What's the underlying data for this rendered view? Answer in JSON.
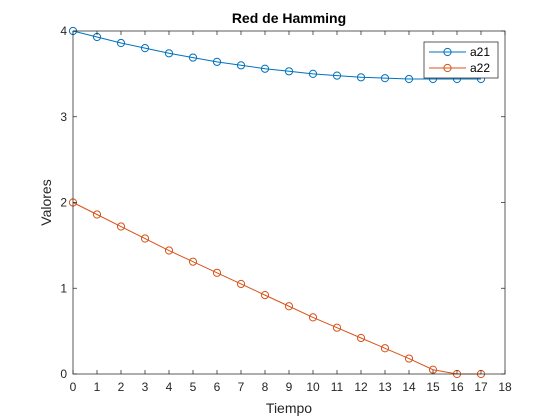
{
  "chart_data": {
    "type": "line",
    "title": "Red de Hamming",
    "xlabel": "Tiempo",
    "ylabel": "Valores",
    "xlim": [
      0,
      18
    ],
    "ylim": [
      0,
      4
    ],
    "xticks": [
      0,
      1,
      2,
      3,
      4,
      5,
      6,
      7,
      8,
      9,
      10,
      11,
      12,
      13,
      14,
      15,
      16,
      17,
      18
    ],
    "yticks": [
      0,
      1,
      2,
      3,
      4
    ],
    "grid": false,
    "legend_position": "top-right",
    "x": [
      0,
      1,
      2,
      3,
      4,
      5,
      6,
      7,
      8,
      9,
      10,
      11,
      12,
      13,
      14,
      15,
      16,
      17
    ],
    "series": [
      {
        "name": "a21",
        "color": "#0072BD",
        "marker": "circle",
        "values": [
          4.0,
          3.93,
          3.86,
          3.8,
          3.74,
          3.69,
          3.64,
          3.6,
          3.56,
          3.53,
          3.5,
          3.48,
          3.46,
          3.45,
          3.44,
          3.44,
          3.44,
          3.44
        ]
      },
      {
        "name": "a22",
        "color": "#D95319",
        "marker": "circle",
        "values": [
          2.0,
          1.86,
          1.72,
          1.58,
          1.44,
          1.31,
          1.18,
          1.05,
          0.92,
          0.79,
          0.66,
          0.54,
          0.42,
          0.3,
          0.18,
          0.05,
          0.0,
          0.0
        ]
      }
    ]
  }
}
